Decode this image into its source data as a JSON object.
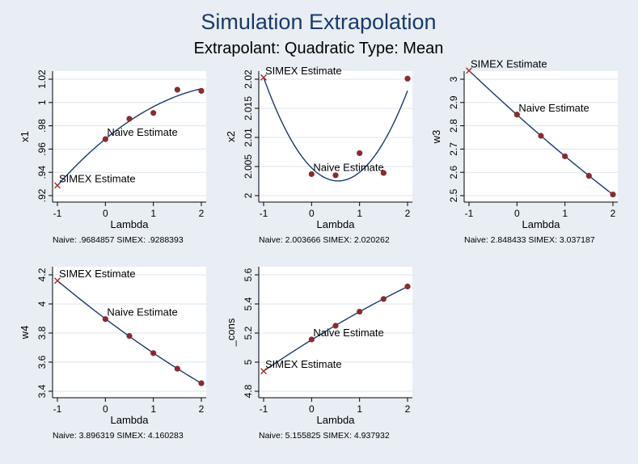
{
  "title": "Simulation Extrapolation",
  "subtitle": "Extrapolant: Quadratic  Type: Mean",
  "colors": {
    "background": "#e8eef3",
    "plot_area": "#ffffff",
    "title": "#1a3a6b",
    "curve": "#1a3a6b",
    "points": "#8b2b2e",
    "simex_marker": "#a0302e",
    "grid": "#dde5ec"
  },
  "chart_data": [
    {
      "type": "scatter",
      "ylabel": "x1",
      "xlabel": "Lambda",
      "xticks": [
        "-1",
        "0",
        "1",
        "2"
      ],
      "xlim": [
        -1,
        2
      ],
      "yticks": [
        ".92",
        ".94",
        ".96",
        ".98",
        "1",
        "1.02"
      ],
      "ylim": [
        0.92,
        1.02
      ],
      "points": [
        [
          0,
          0.9685
        ],
        [
          0.5,
          0.986
        ],
        [
          1,
          0.991
        ],
        [
          1.5,
          1.011
        ],
        [
          2,
          1.01
        ]
      ],
      "simex_point": [
        -1,
        0.9288
      ],
      "naive_label": "Naive Estimate",
      "simex_label": "SIMEX Estimate",
      "footer": "Naive: .9684857     SIMEX: .9288393"
    },
    {
      "type": "scatter",
      "ylabel": "x2",
      "xlabel": "Lambda",
      "xticks": [
        "-1",
        "0",
        "1",
        "2"
      ],
      "xlim": [
        -1,
        2
      ],
      "yticks": [
        "2",
        "2.005",
        "2.01",
        "2.015",
        "2.02"
      ],
      "ylim": [
        2.0,
        2.02
      ],
      "points": [
        [
          0,
          2.0037
        ],
        [
          0.5,
          2.0035
        ],
        [
          1,
          2.0073
        ],
        [
          1.5,
          2.0039
        ],
        [
          2,
          2.0201
        ]
      ],
      "simex_point": [
        -1,
        2.0203
      ],
      "naive_label": "Naive Estimate",
      "simex_label": "SIMEX Estimate",
      "footer": "Naive: 2.003666     SIMEX: 2.020262"
    },
    {
      "type": "scatter",
      "ylabel": "w3",
      "xlabel": "Lambda",
      "xticks": [
        "-1",
        "0",
        "1",
        "2"
      ],
      "xlim": [
        -1,
        2
      ],
      "yticks": [
        "2.5",
        "2.6",
        "2.7",
        "2.8",
        "2.9",
        "3"
      ],
      "ylim": [
        2.5,
        3.0
      ],
      "points": [
        [
          0,
          2.848
        ],
        [
          0.5,
          2.757
        ],
        [
          1,
          2.669
        ],
        [
          1.5,
          2.585
        ],
        [
          2,
          2.505
        ]
      ],
      "simex_point": [
        -1,
        3.037
      ],
      "naive_label": "Naive Estimate",
      "simex_label": "SIMEX Estimate",
      "footer": "Naive: 2.848433     SIMEX: 3.037187"
    },
    {
      "type": "scatter",
      "ylabel": "w4",
      "xlabel": "Lambda",
      "xticks": [
        "-1",
        "0",
        "1",
        "2"
      ],
      "xlim": [
        -1,
        2
      ],
      "yticks": [
        "3.4",
        "3.6",
        "3.8",
        "4",
        "4.2"
      ],
      "ylim": [
        3.4,
        4.2
      ],
      "points": [
        [
          0,
          3.896
        ],
        [
          0.5,
          3.78
        ],
        [
          1,
          3.662
        ],
        [
          1.5,
          3.555
        ],
        [
          2,
          3.455
        ]
      ],
      "simex_point": [
        -1,
        4.16
      ],
      "naive_label": "Naive Estimate",
      "simex_label": "SIMEX Estimate",
      "footer": "Naive: 3.896319     SIMEX: 4.160283"
    },
    {
      "type": "scatter",
      "ylabel": "_cons",
      "xlabel": "Lambda",
      "xticks": [
        "-1",
        "0",
        "1",
        "2"
      ],
      "xlim": [
        -1,
        2
      ],
      "yticks": [
        "4.8",
        "5",
        "5.2",
        "5.4",
        "5.6"
      ],
      "ylim": [
        4.8,
        5.6
      ],
      "points": [
        [
          0,
          5.156
        ],
        [
          0.5,
          5.25
        ],
        [
          1,
          5.347
        ],
        [
          1.5,
          5.434
        ],
        [
          2,
          5.52
        ]
      ],
      "simex_point": [
        -1,
        4.938
      ],
      "naive_label": "Naive Estimate",
      "simex_label": "SIMEX Estimate",
      "footer": "Naive: 5.155825     SIMEX: 4.937932"
    }
  ]
}
